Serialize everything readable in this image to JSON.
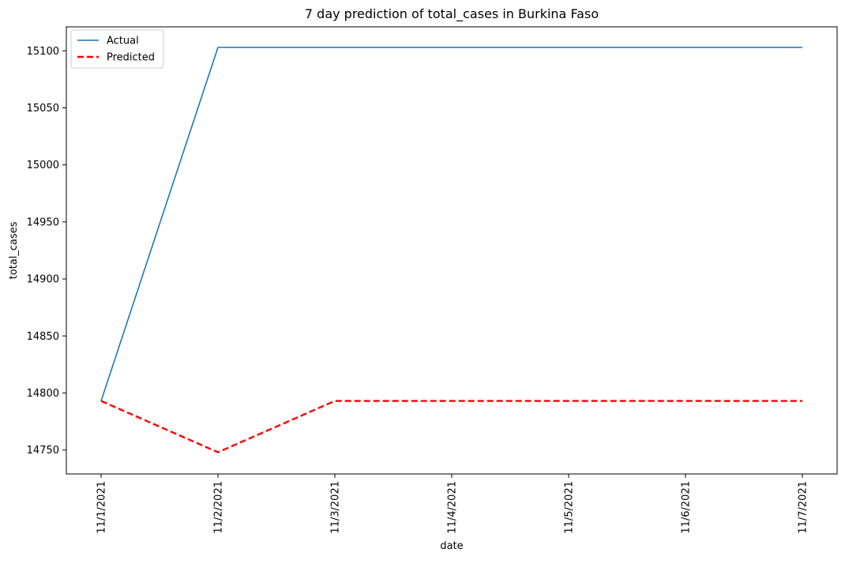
{
  "chart_data": {
    "type": "line",
    "title": "7 day prediction of total_cases in Burkina Faso",
    "xlabel": "date",
    "ylabel": "total_cases",
    "categories": [
      "11/1/2021",
      "11/2/2021",
      "11/3/2021",
      "11/4/2021",
      "11/5/2021",
      "11/6/2021",
      "11/7/2021"
    ],
    "ylim": [
      14729,
      15121
    ],
    "yticks": [
      14750,
      14800,
      14850,
      14900,
      14950,
      15000,
      15050,
      15100
    ],
    "grid": false,
    "legend_position": "top-left",
    "series": [
      {
        "name": "Actual",
        "values": [
          14793,
          15103,
          15103,
          15103,
          15103,
          15103,
          15103
        ],
        "color": "#1f77b4",
        "style": "solid"
      },
      {
        "name": "Predicted",
        "values": [
          14793,
          14748,
          14793,
          14793,
          14793,
          14793,
          14793
        ],
        "color": "#ff0000",
        "style": "dashed"
      }
    ]
  }
}
